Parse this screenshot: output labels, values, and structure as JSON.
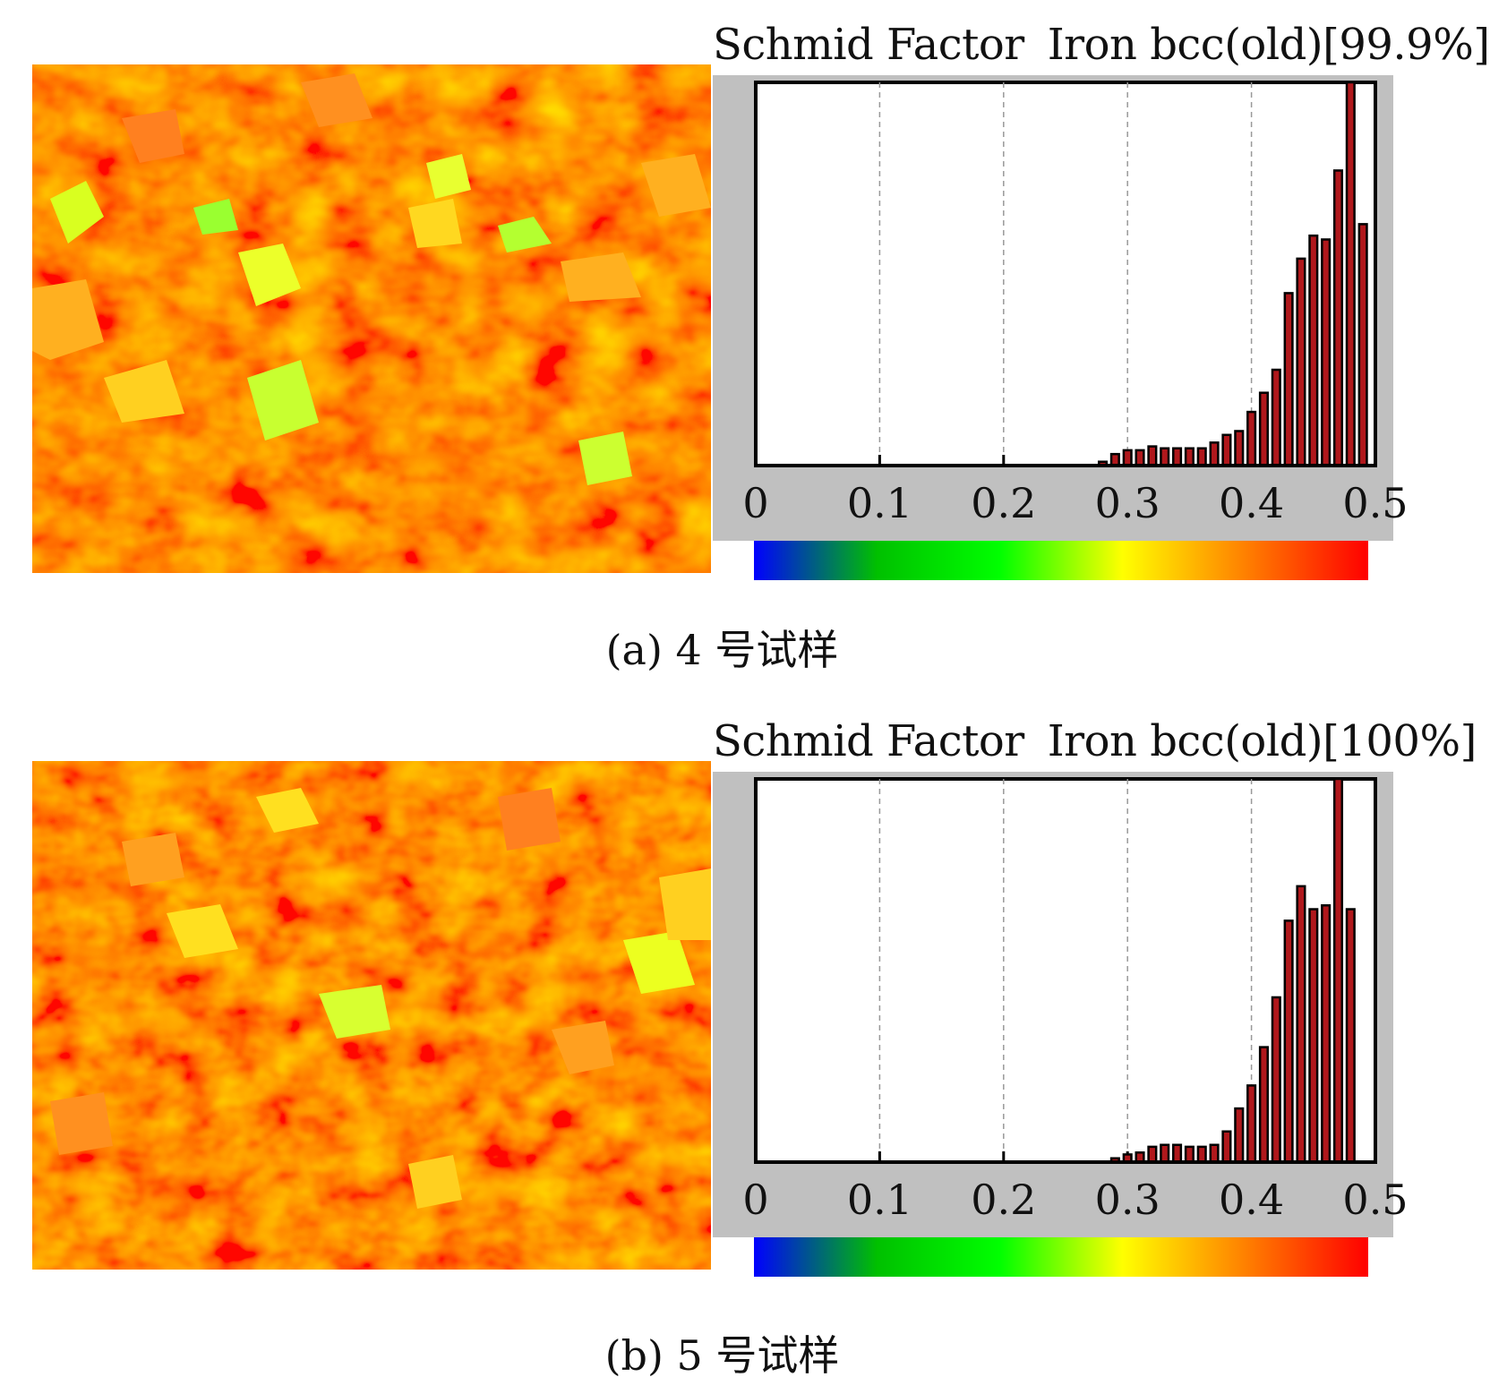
{
  "colors": {
    "bar_fill": "#b0181c",
    "bar_stroke": "#000000",
    "frame_bg": "#c0c0c0",
    "plot_bg": "#ffffff",
    "gridline": "#999999",
    "colorbar": [
      "#0000ff",
      "#00c000",
      "#00ff00",
      "#ffff00",
      "#ff8000",
      "#ff0000"
    ]
  },
  "chart_data": [
    {
      "type": "bar",
      "title_left": "Schmid Factor",
      "title_right": "Iron bcc(old)[99.9%]",
      "caption": "(a) 4 号试样",
      "xlim": [
        0,
        0.5
      ],
      "xticks": [
        "0",
        "0.1",
        "0.2",
        "0.3",
        "0.4",
        "0.5"
      ],
      "grid": "dashed vertical at 0.1, 0.2, 0.3, 0.4",
      "ylim": [
        0,
        100
      ],
      "bin_width": 0.01,
      "x": [
        0.28,
        0.29,
        0.3,
        0.31,
        0.32,
        0.33,
        0.34,
        0.35,
        0.36,
        0.37,
        0.38,
        0.39,
        0.4,
        0.41,
        0.42,
        0.43,
        0.44,
        0.45,
        0.46,
        0.47,
        0.48,
        0.49,
        0.5
      ],
      "values": [
        1,
        3,
        4,
        4,
        5,
        4.5,
        4.5,
        4.5,
        4.5,
        6,
        8,
        9,
        14,
        19,
        25,
        45,
        54,
        60,
        59,
        77,
        100,
        63,
        0
      ],
      "colorbar": {
        "min": 0,
        "max": 0.5,
        "colormap": "blue-green-yellow-red"
      }
    },
    {
      "type": "bar",
      "title_left": "Schmid Factor",
      "title_right": "Iron bcc(old)[100%]",
      "caption": "(b) 5 号试样",
      "xlim": [
        0,
        0.5
      ],
      "xticks": [
        "0",
        "0.1",
        "0.2",
        "0.3",
        "0.4",
        "0.5"
      ],
      "grid": "dashed vertical at 0.1, 0.2, 0.3, 0.4",
      "ylim": [
        0,
        100
      ],
      "bin_width": 0.01,
      "x": [
        0.28,
        0.29,
        0.3,
        0.31,
        0.32,
        0.33,
        0.34,
        0.35,
        0.36,
        0.37,
        0.38,
        0.39,
        0.4,
        0.41,
        0.42,
        0.43,
        0.44,
        0.45,
        0.46,
        0.47,
        0.48,
        0.49,
        0.5
      ],
      "values": [
        0,
        1,
        2,
        2.5,
        4,
        4.5,
        4.5,
        4,
        4,
        4.5,
        8,
        14,
        20,
        30,
        43,
        63,
        72,
        66,
        67,
        100,
        66,
        0,
        0
      ],
      "colorbar": {
        "min": 0,
        "max": 0.5,
        "colormap": "blue-green-yellow-red"
      }
    }
  ]
}
